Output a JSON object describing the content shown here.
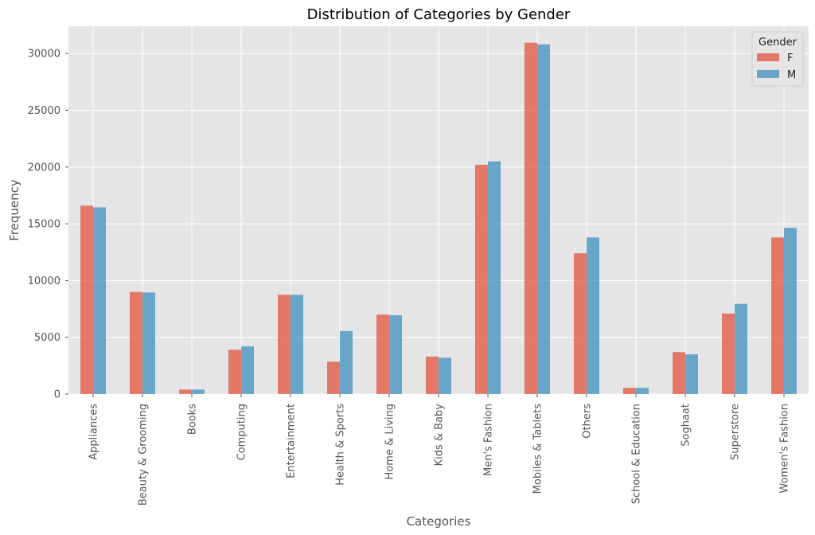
{
  "chart_data": {
    "type": "bar",
    "title": "Distribution of Categories by Gender",
    "xlabel": "Categories",
    "ylabel": "Frequency",
    "categories": [
      "Appliances",
      "Beauty & Grooming",
      "Books",
      "Computing",
      "Entertainment",
      "Health & Sports",
      "Home & Living",
      "Kids & Baby",
      "Men's Fashion",
      "Mobiles & Tablets",
      "Others",
      "School & Education",
      "Soghaat",
      "Superstore",
      "Women's Fashion"
    ],
    "series": [
      {
        "name": "F",
        "color": "#e24a33",
        "values": [
          16600,
          9000,
          400,
          3900,
          8750,
          2850,
          7000,
          3300,
          20200,
          30950,
          12400,
          550,
          3700,
          7100,
          13800
        ]
      },
      {
        "name": "M",
        "color": "#348abd",
        "values": [
          16450,
          8950,
          400,
          4200,
          8750,
          5550,
          6950,
          3200,
          20500,
          30800,
          13800,
          550,
          3500,
          7950,
          14650
        ]
      }
    ],
    "ylim": [
      0,
      32400
    ],
    "yticks": [
      0,
      5000,
      10000,
      15000,
      20000,
      25000,
      30000
    ],
    "ytick_labels": [
      "0",
      "5000",
      "10000",
      "15000",
      "20000",
      "25000",
      "30000"
    ],
    "grid": true,
    "legend": {
      "title": "Gender",
      "position": "top-right"
    }
  }
}
